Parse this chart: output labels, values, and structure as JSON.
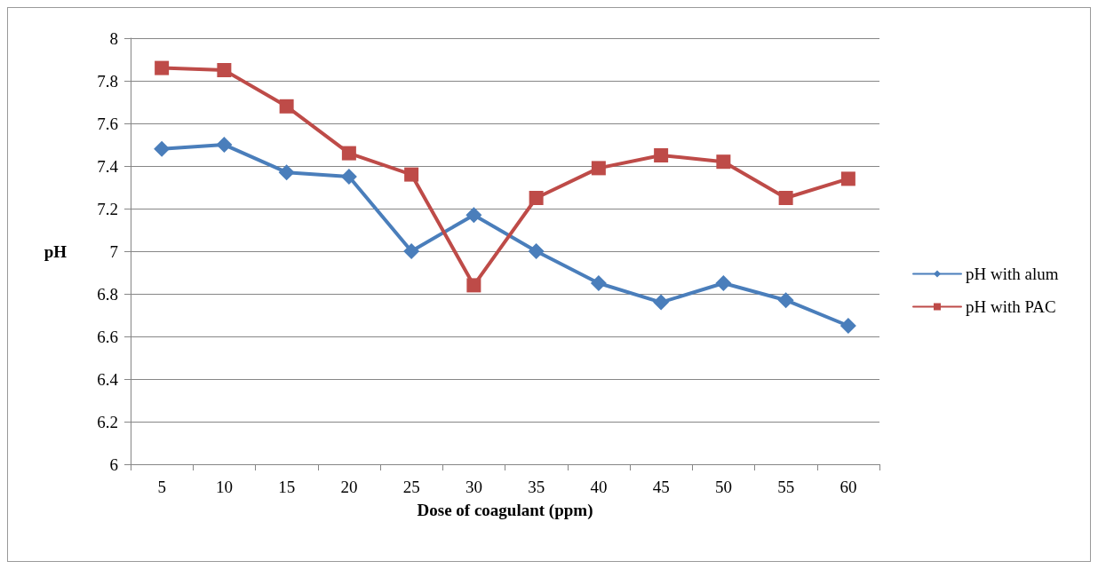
{
  "chart_data": {
    "type": "line",
    "xlabel": "Dose of coagulant (ppm)",
    "ylabel": "pH",
    "categories": [
      "5",
      "10",
      "15",
      "20",
      "25",
      "30",
      "35",
      "40",
      "45",
      "50",
      "55",
      "60"
    ],
    "series": [
      {
        "name": "pH with alum",
        "color": "#4a7ebb",
        "marker": "diamond",
        "values": [
          7.48,
          7.5,
          7.37,
          7.35,
          7.0,
          7.17,
          7.0,
          6.85,
          6.76,
          6.85,
          6.77,
          6.65
        ]
      },
      {
        "name": "pH with PAC",
        "color": "#be4b48",
        "marker": "square",
        "values": [
          7.86,
          7.85,
          7.68,
          7.46,
          7.36,
          6.84,
          7.25,
          7.39,
          7.45,
          7.42,
          7.25,
          7.34
        ]
      }
    ],
    "ylim": [
      6,
      8
    ],
    "yticks": [
      6,
      6.2,
      6.4,
      6.6,
      6.8,
      7,
      7.2,
      7.4,
      7.6,
      7.8,
      8
    ],
    "grid": "y",
    "legend": "right",
    "line_style": "solid"
  }
}
